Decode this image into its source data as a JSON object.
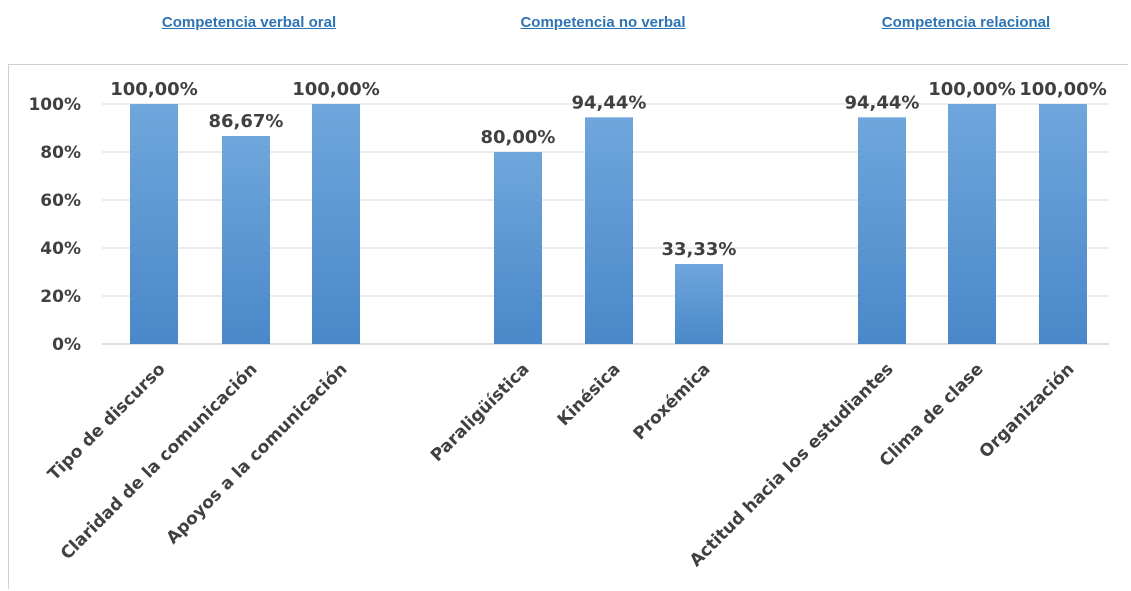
{
  "groups": [
    {
      "title": "Competencia verbal oral"
    },
    {
      "title": "Competencia no verbal"
    },
    {
      "title": "Competencia relacional"
    }
  ],
  "chart_data": {
    "type": "bar",
    "categories": [
      "Tipo de discurso",
      "Claridad de la comunicación",
      "Apoyos a la comunicación",
      "Paraligüística",
      "Kinésica",
      "Proxémica",
      "Actitud hacia los estudiantes",
      "Clima de clase",
      "Organización"
    ],
    "values": [
      100.0,
      86.67,
      100.0,
      80.0,
      94.44,
      33.33,
      94.44,
      100.0,
      100.0
    ],
    "data_labels": [
      "100,00%",
      "86,67%",
      "100,00%",
      "80,00%",
      "94,44%",
      "33,33%",
      "94,44%",
      "100,00%",
      "100,00%"
    ],
    "yticks": [
      "0%",
      "20%",
      "40%",
      "60%",
      "80%",
      "100%"
    ],
    "ylim": [
      0,
      100
    ],
    "grid": true,
    "bar_color": "#5b9bd5"
  }
}
